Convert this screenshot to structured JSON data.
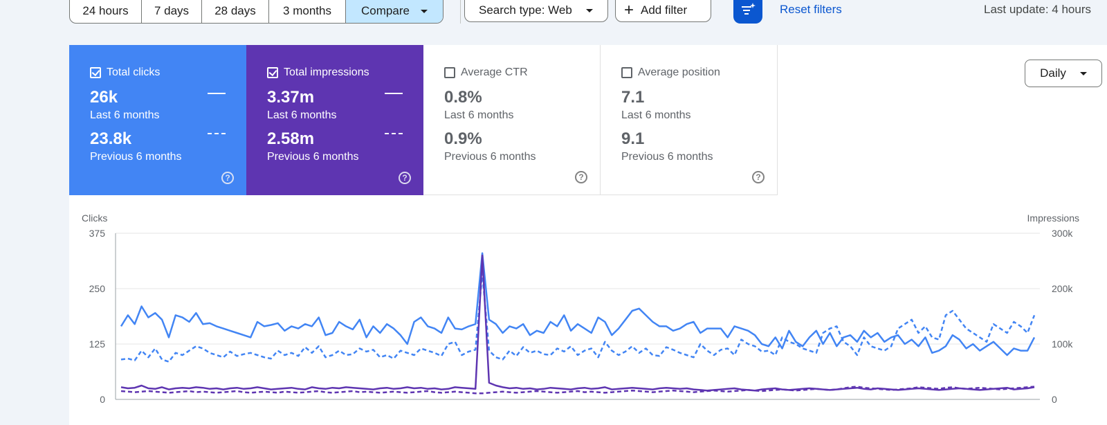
{
  "filters": {
    "ranges": [
      {
        "label": "24 hours",
        "width": 104
      },
      {
        "label": "7 days",
        "width": 87
      },
      {
        "label": "28 days",
        "width": 97
      },
      {
        "label": "3 months",
        "width": 111
      },
      {
        "label": "Compare",
        "width": 140,
        "active": true
      }
    ],
    "search_type": "Search type: Web",
    "add_filter": "Add filter",
    "reset": "Reset filters",
    "last_update": "Last update: 4 hours"
  },
  "metrics": [
    {
      "label": "Total clicks",
      "checked": true,
      "value": "26k",
      "period": "Last 6 months",
      "prev_value": "23.8k",
      "prev_period": "Previous 6 months"
    },
    {
      "label": "Total impressions",
      "checked": true,
      "value": "3.37m",
      "period": "Last 6 months",
      "prev_value": "2.58m",
      "prev_period": "Previous 6 months"
    },
    {
      "label": "Average CTR",
      "checked": false,
      "value": "0.8%",
      "period": "Last 6 months",
      "prev_value": "0.9%",
      "prev_period": "Previous 6 months"
    },
    {
      "label": "Average position",
      "checked": false,
      "value": "7.1",
      "period": "Last 6 months",
      "prev_value": "9.1",
      "prev_period": "Previous 6 months"
    }
  ],
  "granularity": "Daily",
  "colors": {
    "clicks": "#4285f4",
    "impressions": "#5e35b1",
    "accent": "#0b57d0"
  },
  "chart_data": {
    "type": "line",
    "ylabel_left": "Clicks",
    "ylabel_right": "Impressions",
    "yticks_left": [
      "375",
      "250",
      "125",
      "0"
    ],
    "yticks_right": [
      "300k",
      "200k",
      "100k",
      "0"
    ],
    "ylim_left": [
      0,
      375
    ],
    "ylim_right": [
      0,
      300000
    ],
    "grid": true,
    "x_count": 135,
    "series": [
      {
        "axis": "left",
        "style": "solid",
        "color": "#4285f4",
        "values": [
          165,
          190,
          170,
          210,
          185,
          195,
          180,
          140,
          190,
          185,
          175,
          195,
          170,
          172,
          165,
          160,
          155,
          150,
          145,
          140,
          175,
          165,
          168,
          172,
          155,
          165,
          160,
          170,
          165,
          185,
          145,
          150,
          175,
          165,
          158,
          180,
          140,
          165,
          150,
          170,
          160,
          145,
          125,
          175,
          185,
          165,
          160,
          150,
          185,
          160,
          158,
          165,
          170,
          330,
          180,
          170,
          150,
          165,
          160,
          170,
          145,
          155,
          150,
          175,
          165,
          190,
          155,
          170,
          160,
          150,
          185,
          175,
          145,
          160,
          180,
          200,
          205,
          190,
          175,
          165,
          165,
          155,
          160,
          170,
          175,
          150,
          160,
          160,
          160,
          140,
          165,
          160,
          155,
          145,
          125,
          120,
          140,
          115,
          155,
          130,
          120,
          140,
          155,
          125,
          150,
          120,
          140,
          145,
          130,
          155,
          140,
          150,
          130,
          140,
          145,
          125,
          135,
          120,
          140,
          105,
          110,
          120,
          145,
          135,
          115,
          125,
          110,
          120,
          130,
          115,
          100,
          115,
          110,
          110,
          140
        ]
      },
      {
        "axis": "left",
        "style": "dashed",
        "color": "#4285f4",
        "values": [
          90,
          92,
          88,
          110,
          95,
          115,
          90,
          85,
          105,
          100,
          110,
          120,
          115,
          105,
          100,
          95,
          108,
          98,
          102,
          105,
          100,
          95,
          92,
          110,
          100,
          105,
          98,
          118,
          105,
          120,
          95,
          100,
          110,
          100,
          102,
          115,
          108,
          112,
          95,
          100,
          92,
          110,
          105,
          100,
          115,
          110,
          105,
          98,
          125,
          130,
          100,
          108,
          112,
          285,
          110,
          95,
          90,
          110,
          98,
          118,
          105,
          110,
          102,
          100,
          115,
          108,
          120,
          100,
          110,
          115,
          95,
          130,
          110,
          100,
          108,
          120,
          105,
          115,
          100,
          98,
          118,
          112,
          105,
          100,
          95,
          125,
          110,
          100,
          112,
          115,
          100,
          135,
          125,
          120,
          108,
          110,
          100,
          140,
          130,
          125,
          115,
          110,
          105,
          150,
          160,
          165,
          130,
          120,
          100,
          140,
          120,
          115,
          110,
          120,
          160,
          170,
          180,
          150,
          165,
          140,
          135,
          190,
          200,
          180,
          160,
          150,
          140,
          130,
          170,
          160,
          150,
          175,
          165,
          150,
          190
        ]
      },
      {
        "axis": "right",
        "style": "solid",
        "color": "#5e35b1",
        "values": [
          22,
          20,
          21,
          25,
          20,
          19,
          22,
          18,
          20,
          21,
          20,
          22,
          21,
          19,
          20,
          18,
          20,
          21,
          19,
          20,
          22,
          20,
          18,
          19,
          20,
          21,
          19,
          18,
          22,
          20,
          19,
          21,
          20,
          22,
          21,
          20,
          19,
          18,
          20,
          21,
          19,
          20,
          22,
          20,
          21,
          19,
          20,
          18,
          19,
          22,
          21,
          20,
          19,
          260,
          30,
          25,
          22,
          20,
          21,
          19,
          20,
          18,
          19,
          21,
          20,
          19,
          18,
          20,
          21,
          19,
          20,
          22,
          18,
          19,
          20,
          21,
          20,
          19,
          18,
          20,
          21,
          20,
          19,
          20,
          18,
          17,
          16,
          17,
          18,
          19,
          20,
          18,
          17,
          16,
          18,
          19,
          20,
          18,
          17,
          18,
          19,
          20,
          19,
          18,
          17,
          18,
          19,
          20,
          21,
          19,
          18,
          20,
          19,
          18,
          17,
          18,
          19,
          20,
          19,
          18,
          17,
          18,
          19,
          20,
          19,
          18,
          17,
          18,
          19,
          20,
          21,
          18,
          19,
          20,
          22
        ]
      },
      {
        "axis": "right",
        "style": "dashed",
        "color": "#5e35b1",
        "values": [
          15,
          14,
          13,
          14,
          15,
          14,
          13,
          12,
          13,
          14,
          15,
          13,
          14,
          13,
          12,
          13,
          14,
          15,
          13,
          12,
          13,
          14,
          13,
          12,
          14,
          13,
          12,
          13,
          14,
          15,
          13,
          12,
          13,
          14,
          15,
          13,
          14,
          13,
          12,
          13,
          14,
          13,
          12,
          13,
          14,
          15,
          13,
          12,
          13,
          14,
          13,
          12,
          11,
          11,
          12,
          13,
          14,
          13,
          12,
          13,
          14,
          15,
          14,
          13,
          12,
          13,
          14,
          15,
          13,
          14,
          13,
          12,
          13,
          14,
          15,
          16,
          15,
          14,
          13,
          14,
          15,
          16,
          15,
          14,
          13,
          14,
          15,
          16,
          15,
          14,
          15,
          16,
          17,
          16,
          15,
          16,
          17,
          18,
          17,
          16,
          17,
          18,
          19,
          18,
          17,
          18,
          20,
          22,
          23,
          21,
          20,
          19,
          18,
          17,
          18,
          19,
          20,
          22,
          21,
          20,
          19,
          21,
          22,
          20,
          19,
          20,
          21,
          20,
          19,
          18,
          19,
          20,
          21,
          22,
          23
        ]
      }
    ]
  }
}
